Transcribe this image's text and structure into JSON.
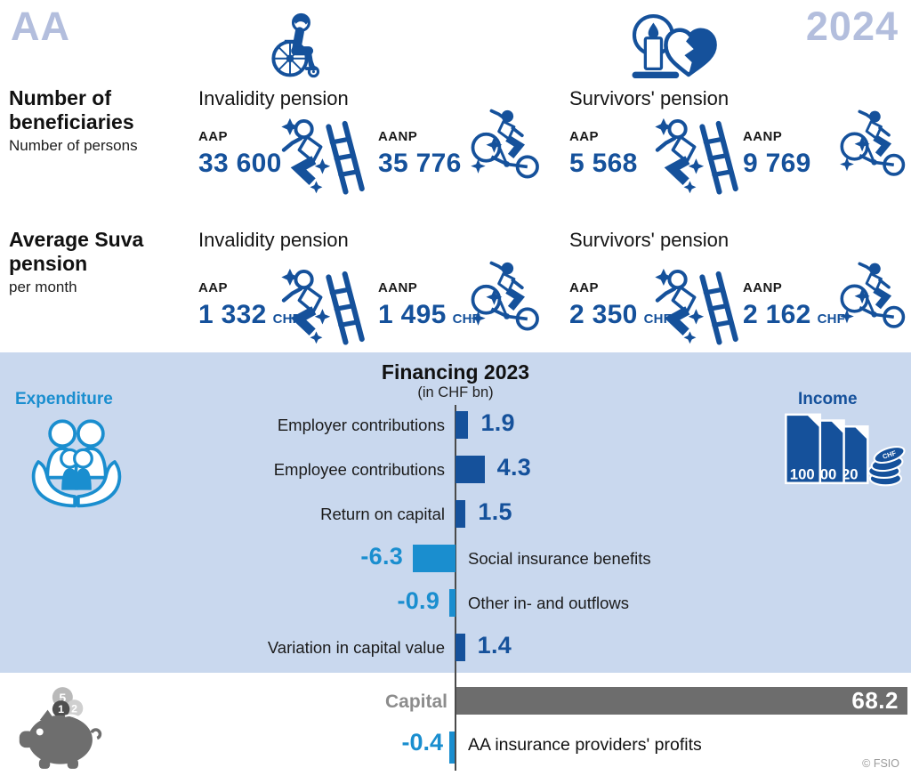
{
  "header": {
    "program": "AA",
    "year": "2024"
  },
  "icons": {
    "header_left": "wheelchair",
    "header_right": "candle-and-broken-heart",
    "occupational_accident": "falling-from-ladder",
    "nonoccupational_accident": "bicycle-accident",
    "expenditure": "family-in-caring-hands",
    "income": "banknotes-and-coins",
    "capital": "piggy-bank"
  },
  "beneficiaries": {
    "title_line1": "Number of",
    "title_line2": "beneficiaries",
    "subtitle": "Number of persons",
    "groups": [
      {
        "title": "Invalidity pension",
        "stats": [
          {
            "label": "AAP",
            "value": "33 600"
          },
          {
            "label": "AANP",
            "value": "35 776"
          }
        ]
      },
      {
        "title": "Survivors' pension",
        "stats": [
          {
            "label": "AAP",
            "value": "5 568"
          },
          {
            "label": "AANP",
            "value": "9 769"
          }
        ]
      }
    ]
  },
  "pension": {
    "title_line1": "Average Suva",
    "title_line2": "pension",
    "subtitle": "per month",
    "unit": "CHF",
    "groups": [
      {
        "title": "Invalidity pension",
        "stats": [
          {
            "label": "AAP",
            "value": "1 332"
          },
          {
            "label": "AANP",
            "value": "1 495"
          }
        ]
      },
      {
        "title": "Survivors' pension",
        "stats": [
          {
            "label": "AAP",
            "value": "2 350"
          },
          {
            "label": "AANP",
            "value": "2 162"
          }
        ]
      }
    ]
  },
  "financing": {
    "expenditure_label": "Expenditure",
    "income_label": "Income"
  },
  "chart_data": {
    "type": "bar",
    "orientation": "horizontal",
    "title": "Financing 2023",
    "subtitle": "(in CHF bn)",
    "unit": "CHF bn",
    "categories": [
      "Employer contributions",
      "Employee contributions",
      "Return on capital",
      "Social insurance benefits",
      "Other in- and outflows",
      "Variation in capital value"
    ],
    "values": [
      1.9,
      4.3,
      1.5,
      -6.3,
      -0.9,
      1.4
    ],
    "extra_rows": [
      {
        "label": "Capital",
        "value": 68.2
      },
      {
        "label": "AA insurance providers' profits",
        "value": -0.4
      }
    ],
    "positive_color": "#15519b",
    "negative_color": "#1a8ecf",
    "capital_color": "#6d6d6d",
    "zero_axis": true,
    "legend": false
  },
  "footer": {
    "copyright": "© FSIO"
  },
  "colors": {
    "dark_blue": "#15519b",
    "light_blue": "#1a8ecf",
    "periwinkle": "#b3bedd",
    "section_bg": "#c9d8ee",
    "capital_gray": "#6d6d6d",
    "label_gray": "#8c8c8c"
  }
}
